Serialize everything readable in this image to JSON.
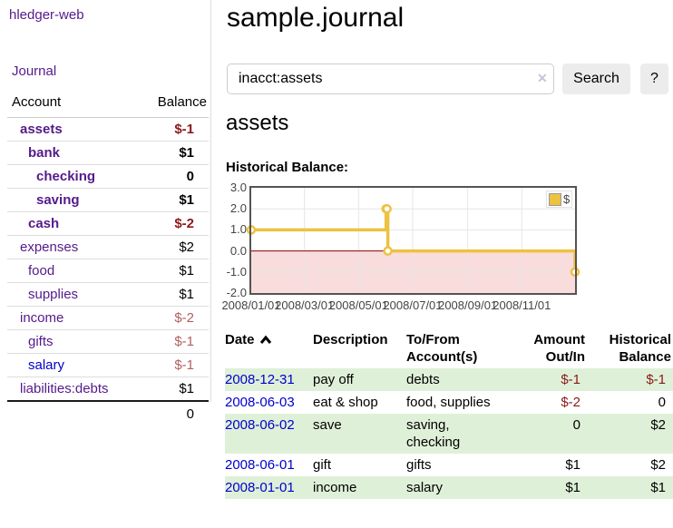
{
  "app": {
    "title": "hledger-web"
  },
  "palette": {
    "purple_link": "#551a8b",
    "blue_link": "#0000cc",
    "neg_strong": "#8b1a1a",
    "neg_soft": "#b25f5f",
    "row_green": "#dff0d8"
  },
  "sidebar": {
    "nav": [
      {
        "label": "Journal"
      }
    ],
    "accounts_table": {
      "headers": {
        "account": "Account",
        "balance": "Balance"
      },
      "rows": [
        {
          "name": "assets",
          "depth": 1,
          "bold": true,
          "name_color": "purple",
          "balance": "$-1"
        },
        {
          "name": "bank",
          "depth": 2,
          "bold": true,
          "name_color": "purple",
          "balance": "$1"
        },
        {
          "name": "checking",
          "depth": 3,
          "bold": true,
          "name_color": "purple",
          "balance": "0"
        },
        {
          "name": "saving",
          "depth": 3,
          "bold": true,
          "name_color": "purple",
          "balance": "$1"
        },
        {
          "name": "cash",
          "depth": 2,
          "bold": true,
          "name_color": "purple",
          "balance": "$-2"
        },
        {
          "name": "expenses",
          "depth": 1,
          "bold": false,
          "name_color": "purple",
          "balance": "$2"
        },
        {
          "name": "food",
          "depth": 2,
          "bold": false,
          "name_color": "purple",
          "balance": "$1"
        },
        {
          "name": "supplies",
          "depth": 2,
          "bold": false,
          "name_color": "purple",
          "balance": "$1"
        },
        {
          "name": "income",
          "depth": 1,
          "bold": false,
          "name_color": "purple",
          "balance": "$-2"
        },
        {
          "name": "gifts",
          "depth": 2,
          "bold": false,
          "name_color": "purple",
          "balance": "$-1"
        },
        {
          "name": "salary",
          "depth": 2,
          "bold": false,
          "name_color": "blue",
          "balance": "$-1"
        },
        {
          "name": "liabilities:debts",
          "depth": 1,
          "bold": false,
          "name_color": "purple",
          "balance": "$1"
        }
      ],
      "total": "0"
    }
  },
  "main": {
    "title": "sample.journal",
    "search": {
      "value": "inacct:assets",
      "clear_icon": "✕",
      "button": "Search",
      "help_button": "?"
    },
    "account_heading": "assets",
    "chart_label": "Historical Balance:"
  },
  "chart_data": {
    "type": "line",
    "step": true,
    "title": "Historical Balance",
    "series": [
      {
        "name": "$",
        "points": [
          [
            "2008-01-01",
            1
          ],
          [
            "2008-06-01",
            2
          ],
          [
            "2008-06-02",
            2
          ],
          [
            "2008-06-03",
            0
          ],
          [
            "2008-12-31",
            -1
          ]
        ]
      }
    ],
    "x_range": [
      "2008-01-01",
      "2008-12-31"
    ],
    "ylim": [
      -2,
      3
    ],
    "y_ticks": [
      {
        "v": 3,
        "label": "3.0"
      },
      {
        "v": 2,
        "label": "2.0"
      },
      {
        "v": 1,
        "label": "1.0"
      },
      {
        "v": 0,
        "label": "0.0"
      },
      {
        "v": -1,
        "label": "-1.0"
      },
      {
        "v": -2,
        "label": "-2.0"
      }
    ],
    "x_ticks": [
      {
        "date": "2008-01-01",
        "label": "2008/01/01"
      },
      {
        "date": "2008-03-01",
        "label": "2008/03/01"
      },
      {
        "date": "2008-05-01",
        "label": "2008/05/01"
      },
      {
        "date": "2008-07-01",
        "label": "2008/07/01"
      },
      {
        "date": "2008-09-01",
        "label": "2008/09/01"
      },
      {
        "date": "2008-11-01",
        "label": "2008/11/01"
      }
    ],
    "legend": {
      "label": "$",
      "position": "top-right"
    },
    "colors": {
      "line": "#edc240",
      "marker_fill": "#ffffff",
      "below_zero_fill": "#f9dcdc",
      "zero_line": "#8b0000",
      "border": "#545454",
      "grid": "#e6e6e6"
    }
  },
  "register": {
    "headers": {
      "date": "Date",
      "description": "Description",
      "tofrom": "To/From\nAccount(s)",
      "amount": "Amount\nOut/In",
      "balance": "Historical\nBalance"
    },
    "rows": [
      {
        "date": "2008-12-31",
        "description": "pay off",
        "accounts": "debts",
        "amount": "$-1",
        "balance": "$-1"
      },
      {
        "date": "2008-06-03",
        "description": "eat & shop",
        "accounts": "food, supplies",
        "amount": "$-2",
        "balance": "0"
      },
      {
        "date": "2008-06-02",
        "description": "save",
        "accounts": "saving,\nchecking",
        "amount": "0",
        "balance": "$2"
      },
      {
        "date": "2008-06-01",
        "description": "gift",
        "accounts": "gifts",
        "amount": "$1",
        "balance": "$2"
      },
      {
        "date": "2008-01-01",
        "description": "income",
        "accounts": "salary",
        "amount": "$1",
        "balance": "$1"
      }
    ]
  }
}
